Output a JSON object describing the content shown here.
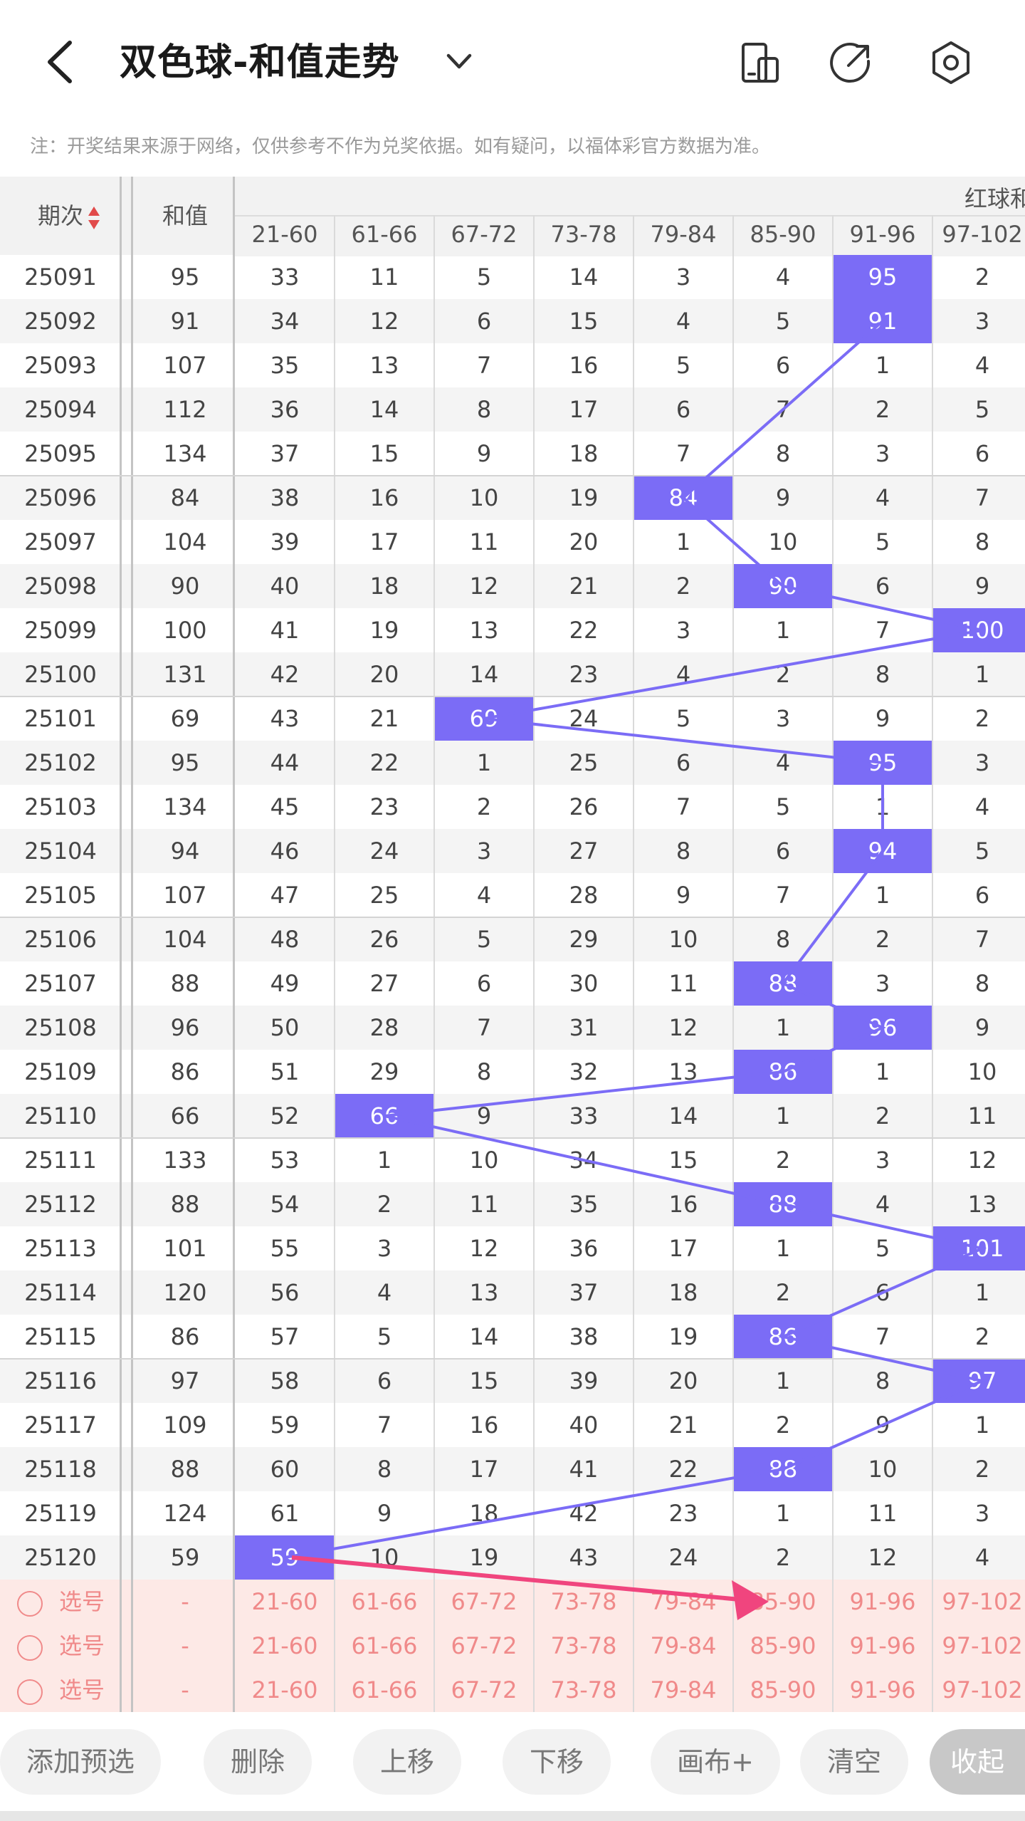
{
  "header": {
    "title": "双色球-和值走势",
    "icons": [
      "chevron-left-icon",
      "chevron-down-icon",
      "layout-icon",
      "share-icon",
      "settings-icon"
    ],
    "notice": "注：开奖结果来源于网络，仅供参考不作为兑奖依据。如有疑问，以福体彩官方数据为准。"
  },
  "table": {
    "col_period": "期次",
    "col_sum": "和值",
    "group_label": "红球和",
    "ranges": [
      "21-60",
      "61-66",
      "67-72",
      "73-78",
      "79-84",
      "85-90",
      "91-96",
      "97-102"
    ],
    "accent_color": "#7b6cf6",
    "rows": [
      {
        "p": "25091",
        "s": "95",
        "v": [
          "33",
          "11",
          "5",
          "14",
          "3",
          "4",
          "95",
          "2"
        ],
        "h": 6
      },
      {
        "p": "25092",
        "s": "91",
        "v": [
          "34",
          "12",
          "6",
          "15",
          "4",
          "5",
          "91",
          "3"
        ],
        "h": 6
      },
      {
        "p": "25093",
        "s": "107",
        "v": [
          "35",
          "13",
          "7",
          "16",
          "5",
          "6",
          "1",
          "4"
        ],
        "h": -1
      },
      {
        "p": "25094",
        "s": "112",
        "v": [
          "36",
          "14",
          "8",
          "17",
          "6",
          "7",
          "2",
          "5"
        ],
        "h": -1
      },
      {
        "p": "25095",
        "s": "134",
        "v": [
          "37",
          "15",
          "9",
          "18",
          "7",
          "8",
          "3",
          "6"
        ],
        "h": -1
      },
      {
        "p": "25096",
        "s": "84",
        "v": [
          "38",
          "16",
          "10",
          "19",
          "84",
          "9",
          "4",
          "7"
        ],
        "h": 4
      },
      {
        "p": "25097",
        "s": "104",
        "v": [
          "39",
          "17",
          "11",
          "20",
          "1",
          "10",
          "5",
          "8"
        ],
        "h": -1
      },
      {
        "p": "25098",
        "s": "90",
        "v": [
          "40",
          "18",
          "12",
          "21",
          "2",
          "90",
          "6",
          "9"
        ],
        "h": 5
      },
      {
        "p": "25099",
        "s": "100",
        "v": [
          "41",
          "19",
          "13",
          "22",
          "3",
          "1",
          "7",
          "100"
        ],
        "h": 7
      },
      {
        "p": "25100",
        "s": "131",
        "v": [
          "42",
          "20",
          "14",
          "23",
          "4",
          "2",
          "8",
          "1"
        ],
        "h": -1
      },
      {
        "p": "25101",
        "s": "69",
        "v": [
          "43",
          "21",
          "69",
          "24",
          "5",
          "3",
          "9",
          "2"
        ],
        "h": 2
      },
      {
        "p": "25102",
        "s": "95",
        "v": [
          "44",
          "22",
          "1",
          "25",
          "6",
          "4",
          "95",
          "3"
        ],
        "h": 6
      },
      {
        "p": "25103",
        "s": "134",
        "v": [
          "45",
          "23",
          "2",
          "26",
          "7",
          "5",
          "1",
          "4"
        ],
        "h": -1
      },
      {
        "p": "25104",
        "s": "94",
        "v": [
          "46",
          "24",
          "3",
          "27",
          "8",
          "6",
          "94",
          "5"
        ],
        "h": 6
      },
      {
        "p": "25105",
        "s": "107",
        "v": [
          "47",
          "25",
          "4",
          "28",
          "9",
          "7",
          "1",
          "6"
        ],
        "h": -1
      },
      {
        "p": "25106",
        "s": "104",
        "v": [
          "48",
          "26",
          "5",
          "29",
          "10",
          "8",
          "2",
          "7"
        ],
        "h": -1
      },
      {
        "p": "25107",
        "s": "88",
        "v": [
          "49",
          "27",
          "6",
          "30",
          "11",
          "88",
          "3",
          "8"
        ],
        "h": 5
      },
      {
        "p": "25108",
        "s": "96",
        "v": [
          "50",
          "28",
          "7",
          "31",
          "12",
          "1",
          "96",
          "9"
        ],
        "h": 6
      },
      {
        "p": "25109",
        "s": "86",
        "v": [
          "51",
          "29",
          "8",
          "32",
          "13",
          "86",
          "1",
          "10"
        ],
        "h": 5
      },
      {
        "p": "25110",
        "s": "66",
        "v": [
          "52",
          "66",
          "9",
          "33",
          "14",
          "1",
          "2",
          "11"
        ],
        "h": 1
      },
      {
        "p": "25111",
        "s": "133",
        "v": [
          "53",
          "1",
          "10",
          "34",
          "15",
          "2",
          "3",
          "12"
        ],
        "h": -1
      },
      {
        "p": "25112",
        "s": "88",
        "v": [
          "54",
          "2",
          "11",
          "35",
          "16",
          "88",
          "4",
          "13"
        ],
        "h": 5
      },
      {
        "p": "25113",
        "s": "101",
        "v": [
          "55",
          "3",
          "12",
          "36",
          "17",
          "1",
          "5",
          "101"
        ],
        "h": 7
      },
      {
        "p": "25114",
        "s": "120",
        "v": [
          "56",
          "4",
          "13",
          "37",
          "18",
          "2",
          "6",
          "1"
        ],
        "h": -1
      },
      {
        "p": "25115",
        "s": "86",
        "v": [
          "57",
          "5",
          "14",
          "38",
          "19",
          "86",
          "7",
          "2"
        ],
        "h": 5
      },
      {
        "p": "25116",
        "s": "97",
        "v": [
          "58",
          "6",
          "15",
          "39",
          "20",
          "1",
          "8",
          "97"
        ],
        "h": 7
      },
      {
        "p": "25117",
        "s": "109",
        "v": [
          "59",
          "7",
          "16",
          "40",
          "21",
          "2",
          "9",
          "1"
        ],
        "h": -1
      },
      {
        "p": "25118",
        "s": "88",
        "v": [
          "60",
          "8",
          "17",
          "41",
          "22",
          "88",
          "10",
          "2"
        ],
        "h": 5
      },
      {
        "p": "25119",
        "s": "124",
        "v": [
          "61",
          "9",
          "18",
          "42",
          "23",
          "1",
          "11",
          "3"
        ],
        "h": -1
      },
      {
        "p": "25120",
        "s": "59",
        "v": [
          "59",
          "10",
          "19",
          "43",
          "24",
          "2",
          "12",
          "4"
        ],
        "h": 0
      }
    ],
    "select_rows": [
      {
        "label": "选号",
        "sum": "-"
      },
      {
        "label": "选号",
        "sum": "-"
      },
      {
        "label": "选号",
        "sum": "-"
      }
    ]
  },
  "toolbar": {
    "buttons": [
      "添加预选",
      "删除",
      "上移",
      "下移",
      "画布+",
      "清空",
      "收起"
    ]
  }
}
